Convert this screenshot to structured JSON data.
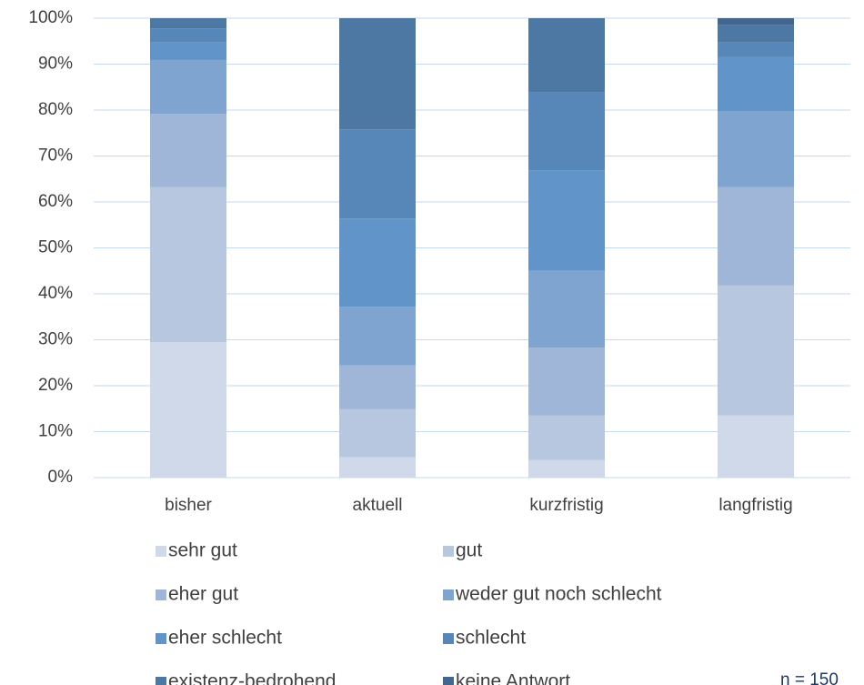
{
  "chart_data": {
    "type": "stacked_bar",
    "categories": [
      "bisher",
      "aktuell",
      "kurzfristig",
      "langfristig"
    ],
    "series": [
      {
        "name": "sehr gut",
        "color": "#cfd9ea",
        "values": [
          29.5,
          4.4,
          3.8,
          13.5
        ]
      },
      {
        "name": "gut",
        "color": "#b8c7e0",
        "values": [
          33.7,
          10.5,
          9.7,
          28.3
        ]
      },
      {
        "name": "eher gut",
        "color": "#9fb6d8",
        "values": [
          16.0,
          9.5,
          14.8,
          21.4
        ]
      },
      {
        "name": "weder gut noch schlecht",
        "color": "#7fa4cf",
        "values": [
          11.7,
          12.8,
          16.7,
          16.6
        ]
      },
      {
        "name": "eher schlecht",
        "color": "#6194c8",
        "values": [
          3.8,
          19.2,
          21.9,
          11.7
        ]
      },
      {
        "name": "schlecht",
        "color": "#5787b8",
        "values": [
          3.1,
          19.4,
          16.9,
          3.2
        ]
      },
      {
        "name": "existenz-bedrohend",
        "color": "#4e78a4",
        "values": [
          2.2,
          24.2,
          16.2,
          3.9
        ]
      },
      {
        "name": "keine Antwort",
        "color": "#44658e",
        "values": [
          0,
          0,
          0,
          1.4
        ]
      }
    ],
    "ylim": [
      0,
      100
    ],
    "yticks": [
      {
        "value": 0,
        "label": "0%"
      },
      {
        "value": 10,
        "label": "10%"
      },
      {
        "value": 20,
        "label": "20%"
      },
      {
        "value": 30,
        "label": "30%"
      },
      {
        "value": 40,
        "label": "40%"
      },
      {
        "value": 50,
        "label": "50%"
      },
      {
        "value": 60,
        "label": "60%"
      },
      {
        "value": 70,
        "label": "70%"
      },
      {
        "value": 80,
        "label": "80%"
      },
      {
        "value": 90,
        "label": "90%"
      },
      {
        "value": 100,
        "label": "100%"
      }
    ],
    "grid": true,
    "legend": "bottom",
    "annotation": "n = 150"
  }
}
